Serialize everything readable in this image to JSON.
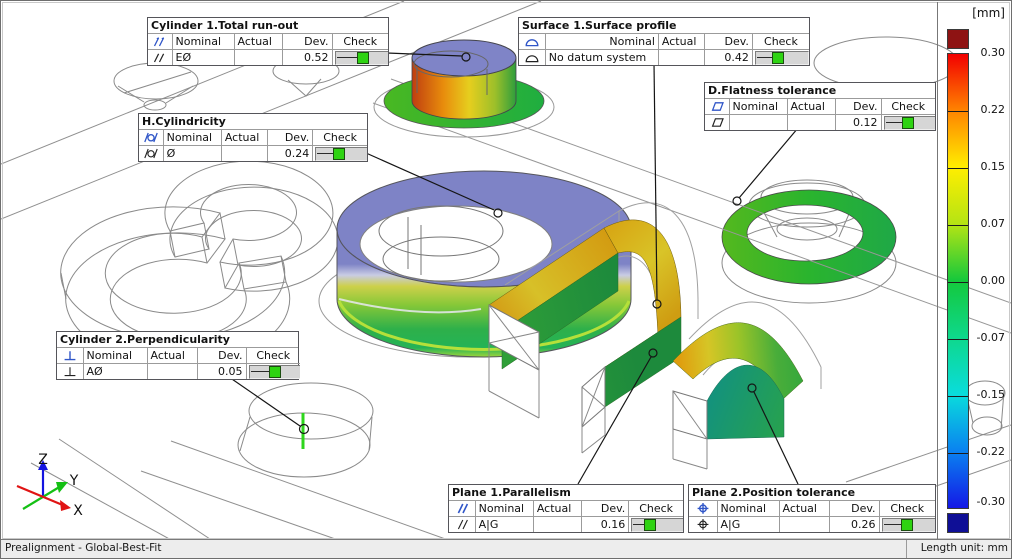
{
  "callouts": [
    {
      "title": "Cylinder 1.Total run-out",
      "icon": "total-runout",
      "cols": [
        "Nominal",
        "Actual",
        "Dev.",
        "Check"
      ],
      "row": {
        "nominal": "EØ",
        "actual": "",
        "dev": "0.52",
        "check_pos": 0.5
      }
    },
    {
      "title": "Surface 1.Surface profile",
      "icon": "surface-profile",
      "cols": [
        "Nominal",
        "Actual",
        "Dev.",
        "Check"
      ],
      "row": {
        "nominal": "No datum system",
        "actual": "",
        "dev": "0.42",
        "check_pos": 0.4
      }
    },
    {
      "title": "D.Flatness tolerance",
      "icon": "flatness",
      "cols": [
        "Nominal",
        "Actual",
        "Dev.",
        "Check"
      ],
      "row": {
        "nominal": "",
        "actual": "",
        "dev": "0.12",
        "check_pos": 0.43
      }
    },
    {
      "title": "H.Cylindricity",
      "icon": "cylindricity",
      "cols": [
        "Nominal",
        "Actual",
        "Dev.",
        "Check"
      ],
      "row": {
        "nominal": "Ø",
        "actual": "",
        "dev": "0.24",
        "check_pos": 0.42
      }
    },
    {
      "title": "Cylinder 2.Perpendicularity",
      "icon": "perpendicularity",
      "cols": [
        "Nominal",
        "Actual",
        "Dev.",
        "Check"
      ],
      "row": {
        "nominal": "AØ",
        "actual": "",
        "dev": "0.05",
        "check_pos": 0.48
      }
    },
    {
      "title": "Plane 1.Parallelism",
      "icon": "parallelism",
      "cols": [
        "Nominal",
        "Actual",
        "Dev.",
        "Check"
      ],
      "row": {
        "nominal": "A|G",
        "actual": "",
        "dev": "0.16",
        "check_pos": 0.33
      }
    },
    {
      "title": "Plane 2.Position tolerance",
      "icon": "position",
      "cols": [
        "Nominal",
        "Actual",
        "Dev.",
        "Check"
      ],
      "row": {
        "nominal": "A|G",
        "actual": "",
        "dev": "0.26",
        "check_pos": 0.45
      }
    }
  ],
  "colorbar": {
    "unit": "[mm]",
    "ticks": [
      "0.30",
      "0.22",
      "0.15",
      "0.07",
      "0.00",
      "-0.07",
      "-0.15",
      "-0.22",
      "-0.30"
    ],
    "above_range_color": "#8e1313",
    "below_range_color": "#0f0f96"
  },
  "statusbar": {
    "alignment": "Prealignment - Global-Best-Fit",
    "length_unit": "Length unit: mm"
  },
  "axes": {
    "x": "X",
    "y": "Y",
    "z": "Z",
    "x_color": "#e01414",
    "y_color": "#14c014",
    "z_color": "#1414e0"
  },
  "check_pass_color": "#2ed312"
}
